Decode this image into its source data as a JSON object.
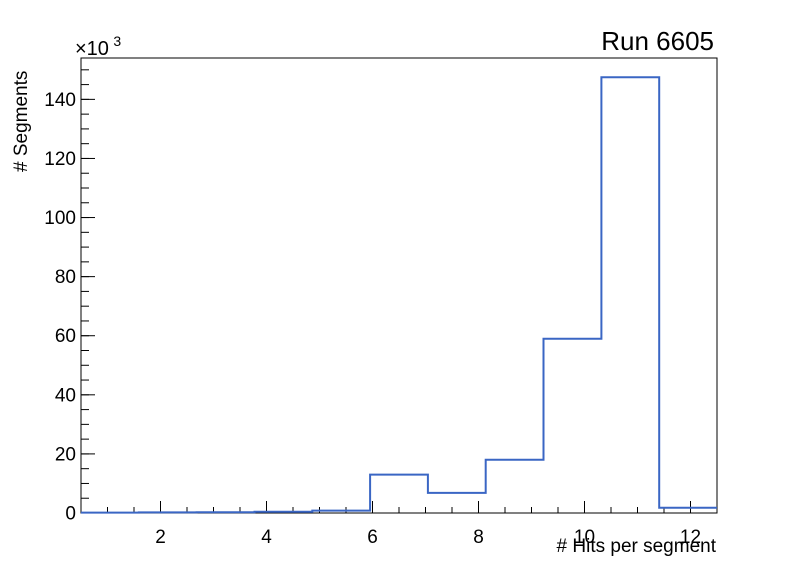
{
  "chart_data": {
    "type": "step-histogram",
    "title": "Run 6605",
    "xlabel": "# Hits per segment",
    "ylabel": "# Segments",
    "y_axis_exponent": {
      "base": "×10",
      "sup": "3"
    },
    "line_color": "#3a66c4",
    "axis_color": "#000000",
    "background_color": "#ffffff",
    "grid": false,
    "legend": "none",
    "xlim": [
      0.5,
      12.5
    ],
    "ylim": [
      0,
      154000
    ],
    "n_bins": 11,
    "bin_edges": [
      0.5,
      1.5909,
      2.6818,
      3.7727,
      4.8636,
      5.9545,
      7.0455,
      8.1364,
      9.2273,
      10.3182,
      11.4091,
      12.5
    ],
    "counts": [
      150,
      200,
      250,
      400,
      800,
      13000,
      6800,
      18000,
      59000,
      147500,
      1800
    ],
    "x_ticks": {
      "major_values": [
        2,
        4,
        6,
        8,
        10,
        12
      ],
      "major_labels": [
        "2",
        "4",
        "6",
        "8",
        "10",
        "12"
      ],
      "minor_step": 0.5
    },
    "y_ticks": {
      "major_values": [
        0,
        20000,
        40000,
        60000,
        80000,
        100000,
        120000,
        140000
      ],
      "major_labels": [
        "0",
        "20",
        "40",
        "60",
        "80",
        "100",
        "120",
        "140"
      ],
      "minor_step": 5000
    }
  }
}
